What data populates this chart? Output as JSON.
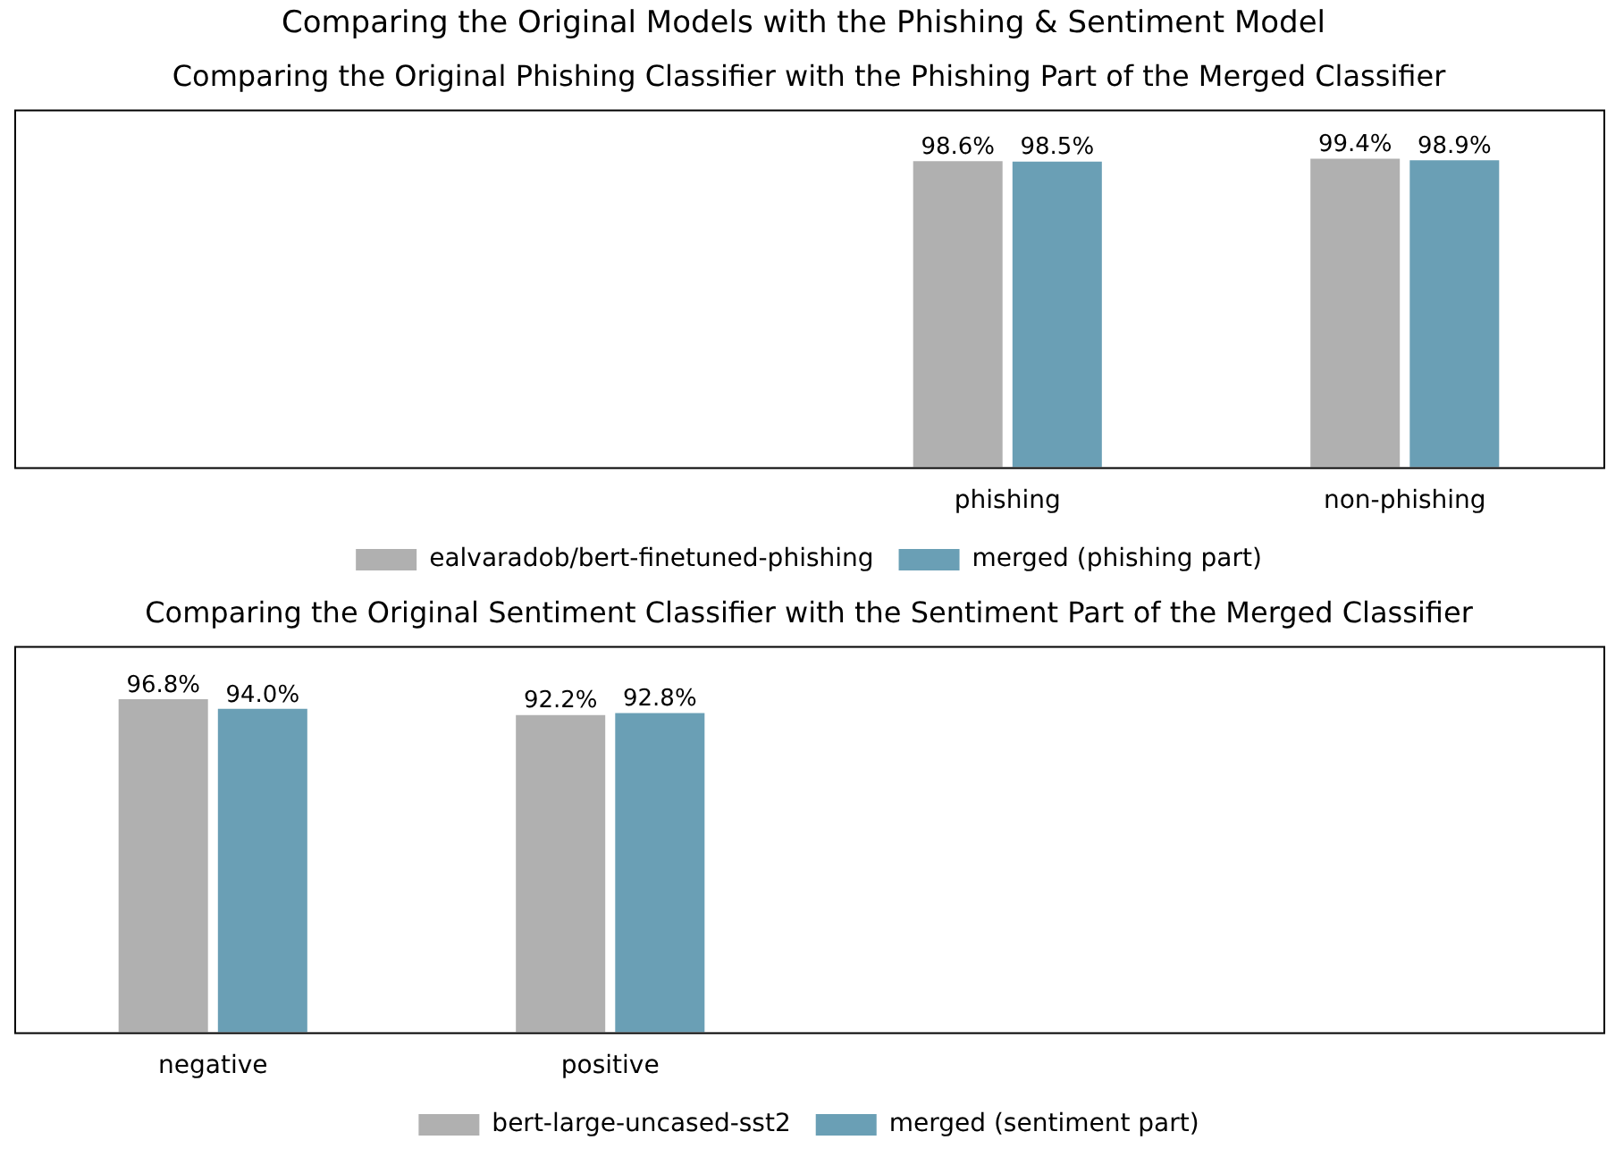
{
  "chart_data": [
    {
      "type": "bar",
      "title": "Comparing the Original Models with the Phishing & Sentiment Model",
      "subtitle": "Comparing the Original Phishing Classifier with the Phishing Part of the Merged Classifier",
      "categories": [
        null,
        null,
        "phishing",
        "non-phishing"
      ],
      "series": [
        {
          "name": "ealvaradob/bert-finetuned-phishing",
          "color": "#b0b0b0",
          "values": [
            null,
            null,
            98.6,
            99.4
          ],
          "value_labels": [
            null,
            null,
            "98.6%",
            "99.4%"
          ]
        },
        {
          "name": "merged (phishing part)",
          "color": "#6a9fb5",
          "values": [
            null,
            null,
            98.5,
            98.9
          ],
          "value_labels": [
            null,
            null,
            "98.5%",
            "98.9%"
          ]
        }
      ],
      "legend": "bottom",
      "tick_labels": "x",
      "grid": false
    },
    {
      "type": "bar",
      "title": "Comparing the Original Sentiment Classifier with the Sentiment Part of the Merged Classifier",
      "categories": [
        "negative",
        "positive",
        null,
        null
      ],
      "series": [
        {
          "name": "bert-large-uncased-sst2",
          "color": "#b0b0b0",
          "values": [
            96.8,
            92.2,
            null,
            null
          ],
          "value_labels": [
            "96.8%",
            "92.2%",
            null,
            null
          ]
        },
        {
          "name": "merged (sentiment part)",
          "color": "#6a9fb5",
          "values": [
            94.0,
            92.8,
            null,
            null
          ],
          "value_labels": [
            "94.0%",
            "92.8%",
            null,
            null
          ]
        }
      ],
      "legend": "bottom",
      "tick_labels": "x",
      "grid": false
    }
  ]
}
